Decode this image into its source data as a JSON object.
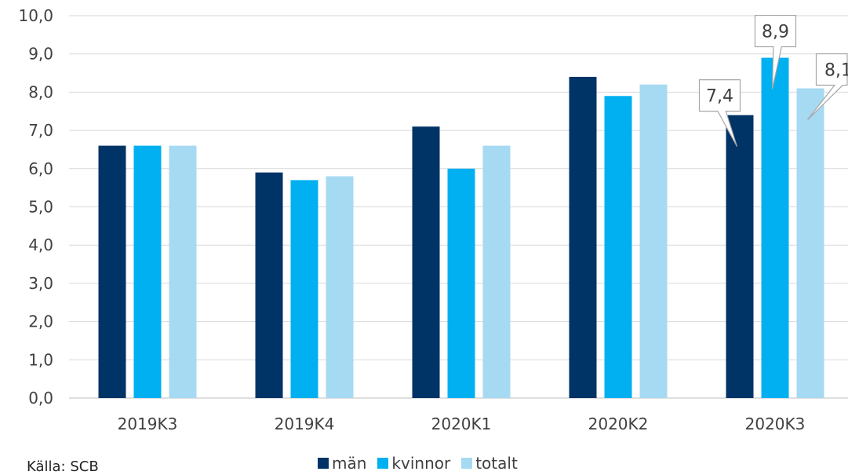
{
  "chart_data": {
    "type": "bar",
    "categories": [
      "2019K3",
      "2019K4",
      "2020K1",
      "2020K2",
      "2020K3"
    ],
    "series": [
      {
        "name": "män",
        "color": "#003366",
        "values": [
          6.6,
          5.9,
          7.1,
          8.4,
          7.4
        ]
      },
      {
        "name": "kvinnor",
        "color": "#00B0F0",
        "values": [
          6.6,
          5.7,
          6.0,
          7.9,
          8.9
        ]
      },
      {
        "name": "totalt",
        "color": "#A6DAF2",
        "values": [
          6.6,
          5.8,
          6.6,
          8.2,
          8.1
        ]
      }
    ],
    "ylim": [
      0,
      10
    ],
    "yticks": [
      "0,0",
      "1,0",
      "2,0",
      "3,0",
      "4,0",
      "5,0",
      "6,0",
      "7,0",
      "8,0",
      "9,0",
      "10,0"
    ],
    "grid": true,
    "legend_position": "bottom",
    "callouts": [
      {
        "category": "2020K3",
        "series": "män",
        "label": "7,4"
      },
      {
        "category": "2020K3",
        "series": "kvinnor",
        "label": "8,9"
      },
      {
        "category": "2020K3",
        "series": "totalt",
        "label": "8,1"
      }
    ]
  },
  "source": "Källa: SCB",
  "legend": [
    {
      "label": "män",
      "color": "#003366"
    },
    {
      "label": "kvinnor",
      "color": "#00B0F0"
    },
    {
      "label": "totalt",
      "color": "#A6DAF2"
    }
  ]
}
